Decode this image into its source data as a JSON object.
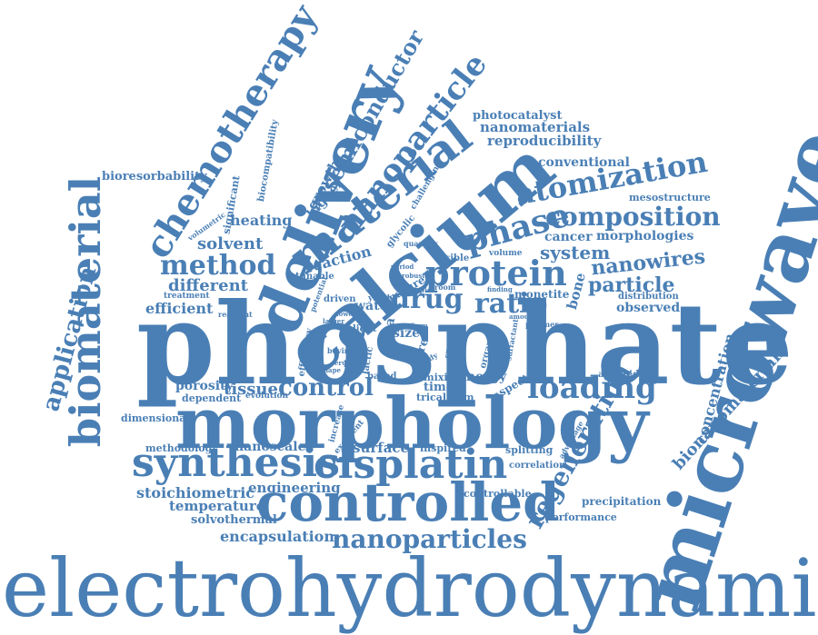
{
  "color": "#4a7fb5",
  "words": [
    {
      "id": "electrohydrodynamic",
      "text": "electrohydrodynamic"
    },
    {
      "id": "phosphate",
      "text": "phosphate"
    },
    {
      "id": "morphology",
      "text": "morphology"
    },
    {
      "id": "microwave",
      "text": "microwave"
    },
    {
      "id": "calcium",
      "text": "calcium"
    },
    {
      "id": "delivery",
      "text": "delivery"
    },
    {
      "id": "controlled",
      "text": "controlled"
    },
    {
      "id": "biomaterial",
      "text": "biomaterial"
    },
    {
      "id": "synthesis",
      "text": "synthesis"
    },
    {
      "id": "cisplatin",
      "text": "cisplatin"
    },
    {
      "id": "material",
      "text": "material"
    },
    {
      "id": "chemotherapy",
      "text": "chemotherapy"
    },
    {
      "id": "protein",
      "text": "protein"
    },
    {
      "id": "nanoparticles",
      "text": "nanoparticles"
    },
    {
      "id": "nanoparticle",
      "text": "nanoparticle"
    },
    {
      "id": "regeneration",
      "text": "regeneration"
    },
    {
      "id": "atomization",
      "text": "atomization"
    },
    {
      "id": "composition",
      "text": "composition"
    },
    {
      "id": "phase",
      "text": "phase"
    },
    {
      "id": "loading",
      "text": "loading"
    },
    {
      "id": "method",
      "text": "method"
    },
    {
      "id": "semiconductor",
      "text": "semiconductor"
    },
    {
      "id": "application",
      "text": "application"
    },
    {
      "id": "control",
      "text": "control"
    },
    {
      "id": "drug",
      "text": "drug"
    },
    {
      "id": "ratio",
      "text": "ratio"
    },
    {
      "id": "nanowires",
      "text": "nanowires"
    },
    {
      "id": "particle",
      "text": "particle"
    },
    {
      "id": "system",
      "text": "system"
    },
    {
      "id": "bionanomaterials",
      "text": "bionanomaterials"
    },
    {
      "id": "concentration",
      "text": "concentration"
    },
    {
      "id": "encapsulation",
      "text": "encapsulation"
    },
    {
      "id": "stoichiometric",
      "text": "stoichiometric"
    },
    {
      "id": "temperature",
      "text": "temperature"
    },
    {
      "id": "solvothermal",
      "text": "solvothermal"
    },
    {
      "id": "engineering",
      "text": "engineering"
    },
    {
      "id": "nanoscale",
      "text": "nanoscale"
    },
    {
      "id": "surface",
      "text": "surface"
    },
    {
      "id": "methodology",
      "text": "methodology"
    },
    {
      "id": "dimensional",
      "text": "dimensional"
    },
    {
      "id": "porosity",
      "text": "porosity"
    },
    {
      "id": "tissue",
      "text": "tissue"
    },
    {
      "id": "dependent",
      "text": "dependent"
    },
    {
      "id": "efficient",
      "text": "efficient"
    },
    {
      "id": "different",
      "text": "different"
    },
    {
      "id": "solvent",
      "text": "solvent"
    },
    {
      "id": "heating",
      "text": "heating"
    },
    {
      "id": "bioresorbability",
      "text": "bioresorbability"
    },
    {
      "id": "photocatalyst",
      "text": "photocatalyst"
    },
    {
      "id": "nanomaterials",
      "text": "nanomaterials"
    },
    {
      "id": "reproducibility",
      "text": "reproducibility"
    },
    {
      "id": "conventional",
      "text": "conventional"
    },
    {
      "id": "mesostructure",
      "text": "mesostructure"
    },
    {
      "id": "cancer",
      "text": "cancer"
    },
    {
      "id": "morphologies",
      "text": "morphologies"
    },
    {
      "id": "bone",
      "text": "bone"
    },
    {
      "id": "monetite",
      "text": "monetite"
    },
    {
      "id": "observed",
      "text": "observed"
    },
    {
      "id": "distribution",
      "text": "distribution"
    },
    {
      "id": "reaction",
      "text": "reaction"
    },
    {
      "id": "water",
      "text": "water"
    },
    {
      "id": "higher",
      "text": "higher"
    },
    {
      "id": "growth",
      "text": "growth"
    },
    {
      "id": "significant",
      "text": "significant"
    },
    {
      "id": "biocompatibility",
      "text": "biocompatibility"
    },
    {
      "id": "precipitation",
      "text": "precipitation"
    },
    {
      "id": "performance",
      "text": "performance"
    },
    {
      "id": "controllable",
      "text": "controllable"
    },
    {
      "id": "correlation",
      "text": "correlation"
    },
    {
      "id": "splitting",
      "text": "splitting"
    },
    {
      "id": "inspired",
      "text": "inspired"
    },
    {
      "id": "energy",
      "text": "energy"
    },
    {
      "id": "mixing",
      "text": "mixing"
    },
    {
      "id": "tricalcium",
      "text": "tricalcium"
    },
    {
      "id": "time",
      "text": "time"
    },
    {
      "id": "aspect",
      "text": "aspect"
    },
    {
      "id": "assisted",
      "text": "assisted"
    },
    {
      "id": "evolution",
      "text": "evolution"
    },
    {
      "id": "increase",
      "text": "increase"
    },
    {
      "id": "excellent",
      "text": "excellent"
    },
    {
      "id": "glycolic",
      "text": "glycolic"
    },
    {
      "id": "challenging",
      "text": "challenging"
    },
    {
      "id": "visible",
      "text": "visible"
    },
    {
      "id": "volume",
      "text": "volume"
    },
    {
      "id": "quantity",
      "text": "quantity"
    },
    {
      "id": "rapid",
      "text": "rapid"
    },
    {
      "id": "nature",
      "text": "nature"
    },
    {
      "id": "driven",
      "text": "driven"
    },
    {
      "id": "yield",
      "text": "yield"
    },
    {
      "id": "treatment",
      "text": "treatment"
    },
    {
      "id": "tunable",
      "text": "tunable"
    },
    {
      "id": "potential",
      "text": "potential"
    },
    {
      "id": "reactant",
      "text": "reactant"
    },
    {
      "id": "orientated",
      "text": "orientated"
    },
    {
      "id": "efficiency",
      "text": "efficiency"
    },
    {
      "id": "light",
      "text": "light"
    },
    {
      "id": "area",
      "text": "area"
    },
    {
      "id": "size",
      "text": "size"
    },
    {
      "id": "pore",
      "text": "pore"
    },
    {
      "id": "lactic",
      "text": "lactic"
    },
    {
      "id": "pure",
      "text": "pure"
    },
    {
      "id": "bovine",
      "text": "bovine"
    },
    {
      "id": "based",
      "text": "based"
    },
    {
      "id": "organic",
      "text": "organic"
    },
    {
      "id": "surfactant",
      "text": "surfactant"
    },
    {
      "id": "amount",
      "text": "amount"
    },
    {
      "id": "polymer",
      "text": "polymer"
    },
    {
      "id": "finding",
      "text": "finding"
    },
    {
      "id": "room",
      "text": "room"
    },
    {
      "id": "robust",
      "text": "robust"
    },
    {
      "id": "study",
      "text": "study"
    },
    {
      "id": "crucial",
      "text": "crucial"
    },
    {
      "id": "advantage",
      "text": "advantage"
    },
    {
      "id": "volumetric",
      "text": "volumetric"
    },
    {
      "id": "larger",
      "text": "larger"
    },
    {
      "id": "lower",
      "text": "lower"
    },
    {
      "id": "rate",
      "text": "rate"
    },
    {
      "id": "shape",
      "text": "shape"
    },
    {
      "id": "serum",
      "text": "serum"
    },
    {
      "id": "tend",
      "text": "tend"
    },
    {
      "id": "period",
      "text": "period"
    },
    {
      "id": "form",
      "text": "form"
    }
  ]
}
